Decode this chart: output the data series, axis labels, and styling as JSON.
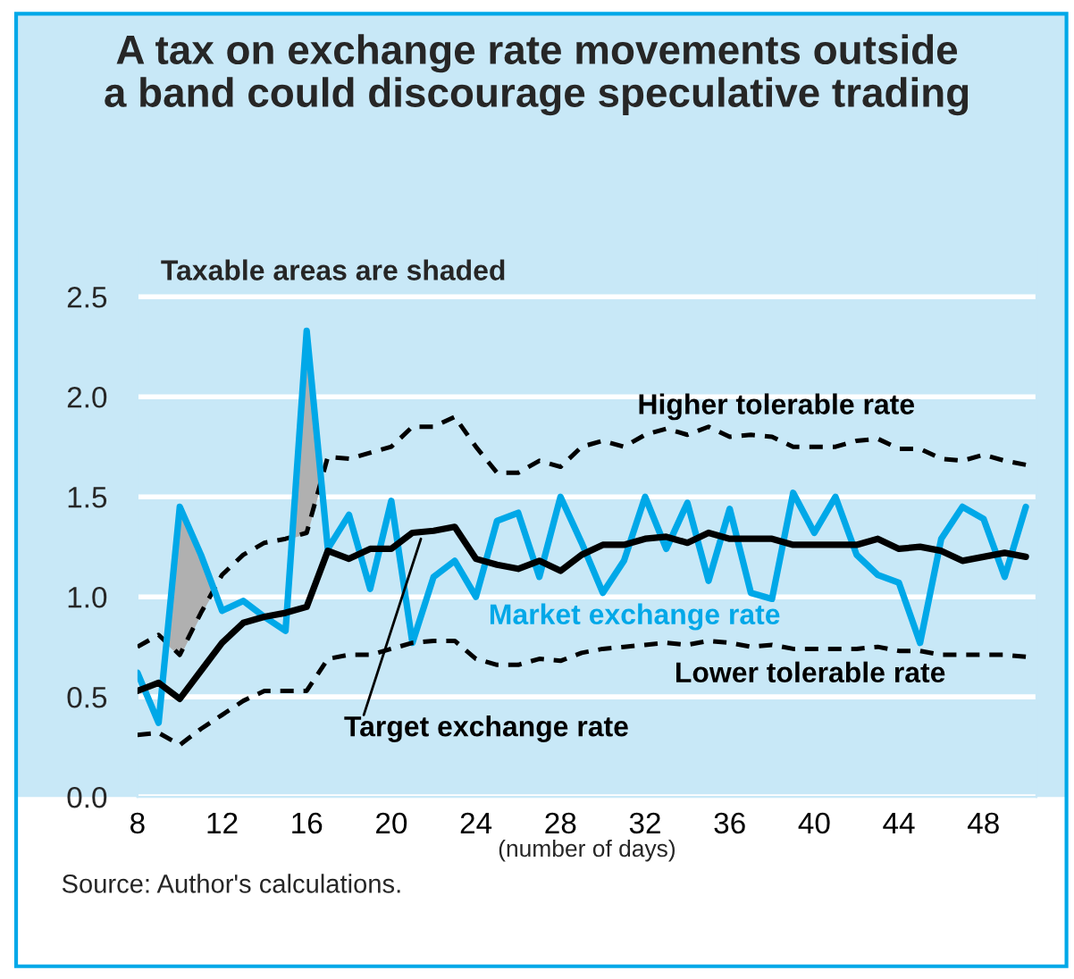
{
  "chart_data": {
    "type": "line",
    "title": "A tax on exchange rate movements outside\na band could discourage speculative trading",
    "xlabel": "(number of days)",
    "x": [
      8,
      9,
      10,
      11,
      12,
      13,
      14,
      15,
      16,
      17,
      18,
      19,
      20,
      21,
      22,
      23,
      24,
      25,
      26,
      27,
      28,
      29,
      30,
      31,
      32,
      33,
      34,
      35,
      36,
      37,
      38,
      39,
      40,
      41,
      42,
      43,
      44,
      45,
      46,
      47,
      48,
      49,
      50
    ],
    "series": [
      {
        "name": "Higher tolerable rate",
        "color": "#000000",
        "line_style": "dashed",
        "values": [
          0.75,
          0.81,
          0.71,
          0.92,
          1.11,
          1.21,
          1.27,
          1.29,
          1.32,
          1.7,
          1.69,
          1.72,
          1.75,
          1.85,
          1.85,
          1.9,
          1.75,
          1.62,
          1.62,
          1.68,
          1.65,
          1.75,
          1.78,
          1.75,
          1.81,
          1.84,
          1.81,
          1.85,
          1.8,
          1.81,
          1.8,
          1.75,
          1.75,
          1.75,
          1.78,
          1.79,
          1.74,
          1.74,
          1.69,
          1.68,
          1.71,
          1.68,
          1.66
        ]
      },
      {
        "name": "Market exchange rate",
        "color": "#00a8e8",
        "line_style": "solid",
        "values": [
          0.62,
          0.37,
          1.45,
          1.21,
          0.93,
          0.98,
          0.9,
          0.83,
          2.33,
          1.24,
          1.41,
          1.04,
          1.48,
          0.77,
          1.1,
          1.18,
          1.0,
          1.38,
          1.42,
          1.1,
          1.5,
          1.27,
          1.02,
          1.18,
          1.5,
          1.24,
          1.47,
          1.08,
          1.44,
          1.02,
          0.99,
          1.52,
          1.32,
          1.5,
          1.21,
          1.11,
          1.07,
          0.77,
          1.29,
          1.45,
          1.39,
          1.1,
          1.45
        ]
      },
      {
        "name": "Lower tolerable rate",
        "color": "#000000",
        "line_style": "dashed",
        "values": [
          0.31,
          0.32,
          0.26,
          0.34,
          0.41,
          0.48,
          0.53,
          0.53,
          0.53,
          0.69,
          0.71,
          0.71,
          0.74,
          0.77,
          0.78,
          0.78,
          0.69,
          0.66,
          0.66,
          0.69,
          0.68,
          0.72,
          0.74,
          0.75,
          0.76,
          0.77,
          0.76,
          0.78,
          0.77,
          0.75,
          0.76,
          0.74,
          0.74,
          0.74,
          0.74,
          0.75,
          0.73,
          0.73,
          0.71,
          0.71,
          0.71,
          0.71,
          0.7
        ]
      },
      {
        "name": "Target exchange rate",
        "color": "#000000",
        "line_style": "solid",
        "values": [
          0.53,
          0.57,
          0.49,
          0.63,
          0.77,
          0.87,
          0.9,
          0.92,
          0.95,
          1.23,
          1.19,
          1.24,
          1.24,
          1.32,
          1.33,
          1.35,
          1.19,
          1.16,
          1.14,
          1.18,
          1.13,
          1.21,
          1.26,
          1.26,
          1.29,
          1.3,
          1.27,
          1.32,
          1.29,
          1.29,
          1.29,
          1.26,
          1.26,
          1.26,
          1.26,
          1.29,
          1.24,
          1.25,
          1.23,
          1.18,
          1.2,
          1.22,
          1.2
        ]
      }
    ],
    "xlim": [
      8,
      50.5
    ],
    "xticks": [
      8,
      12,
      16,
      20,
      24,
      28,
      32,
      36,
      40,
      44,
      48
    ],
    "ylim": [
      0,
      2.75
    ],
    "yticks": [
      {
        "value": 0,
        "label": "0.0"
      },
      {
        "value": 0.5,
        "label": "0.5"
      },
      {
        "value": 1,
        "label": "1.0"
      },
      {
        "value": 1.5,
        "label": "1.5"
      },
      {
        "value": 2,
        "label": "2.0"
      },
      {
        "value": 2.5,
        "label": "2.5"
      }
    ],
    "grid": "y",
    "legend": false,
    "marker": "none",
    "annotations": [
      "Taxable areas are shaded",
      "Source: Author's calculations."
    ]
  }
}
